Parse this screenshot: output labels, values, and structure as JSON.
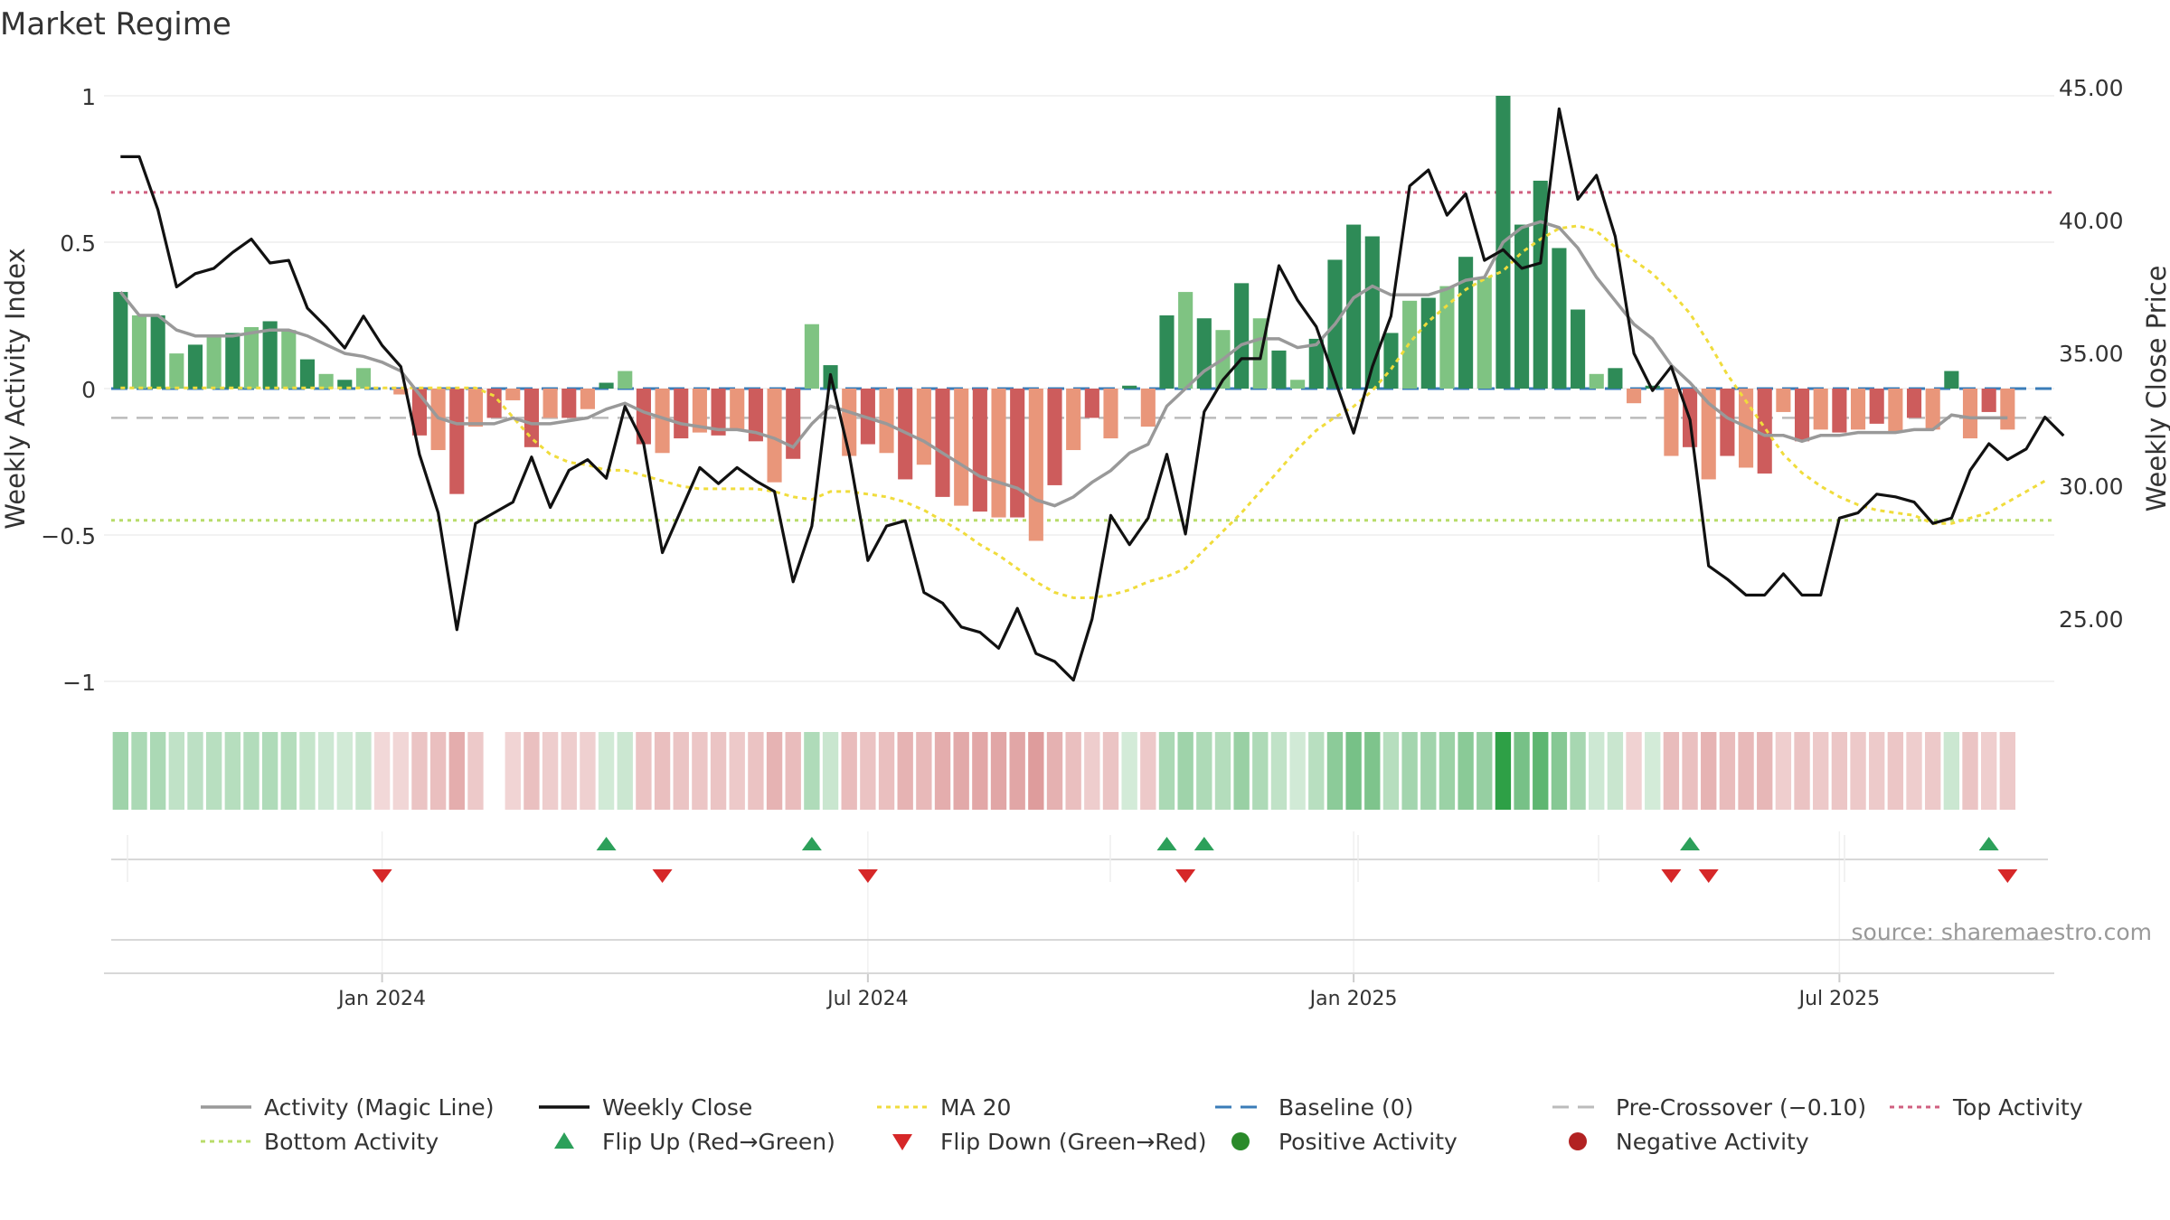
{
  "chart_data": {
    "type": "bar",
    "title": "Market Regime",
    "ylabel_left": "Weekly Activity Index",
    "ylabel_right": "Weekly Close Price",
    "source": "source: sharemaestro.com",
    "ylim_left": [
      -1.05,
      1.0
    ],
    "ylim_right": [
      22.4,
      45.2
    ],
    "yticks_left": [
      {
        "v": 1,
        "label": "1"
      },
      {
        "v": 0.5,
        "label": "0.5"
      },
      {
        "v": 0,
        "label": "0"
      },
      {
        "v": -0.5,
        "label": "−0.5"
      },
      {
        "v": -1,
        "label": "−1"
      }
    ],
    "yticks_right": [
      {
        "v": 45,
        "label": "45.00"
      },
      {
        "v": 40,
        "label": "40.00"
      },
      {
        "v": 35,
        "label": "35.00"
      },
      {
        "v": 30,
        "label": "30.00"
      },
      {
        "v": 25,
        "label": "25.00"
      }
    ],
    "xticks": [
      {
        "i": 14,
        "label": "Jan 2024"
      },
      {
        "i": 40,
        "label": "Jul 2024"
      },
      {
        "i": 66,
        "label": "Jan 2025"
      },
      {
        "i": 92,
        "label": "Jul 2025"
      }
    ],
    "grid": true,
    "legend_position": "bottom",
    "colors": {
      "pos_strong": "#2e8b57",
      "pos_light": "#7fc382",
      "neg_strong": "#cd5c5c",
      "neg_light": "#e9967a",
      "activity": "#999999",
      "close": "#111111",
      "ma": "#f0dc3c",
      "baseline": "#3a7cb8",
      "precross": "#bbbbbb",
      "top": "#d06080",
      "bottom": "#b8dc6a",
      "flip_up": "#2ca05a",
      "flip_down": "#d62728",
      "pos_dot": "#2a8a2a",
      "neg_dot": "#b22222"
    },
    "thresholds": {
      "baseline": 0,
      "pre_crossover": -0.1,
      "top_activity": 0.67,
      "bottom_activity": -0.45
    },
    "x_count": 104,
    "series": [
      {
        "name": "Weekly Activity Index",
        "kind": "bar",
        "values": [
          0.33,
          0.25,
          0.25,
          0.12,
          0.15,
          0.18,
          0.19,
          0.21,
          0.23,
          0.2,
          0.1,
          0.05,
          0.03,
          0.07,
          0,
          -0.02,
          -0.16,
          -0.21,
          -0.36,
          -0.13,
          -0.1,
          -0.04,
          -0.2,
          -0.1,
          -0.1,
          -0.07,
          0.02,
          0.06,
          -0.19,
          -0.22,
          -0.17,
          -0.15,
          -0.16,
          -0.14,
          -0.18,
          -0.32,
          -0.24,
          0.22,
          0.08,
          -0.23,
          -0.19,
          -0.22,
          -0.31,
          -0.26,
          -0.37,
          -0.4,
          -0.42,
          -0.44,
          -0.44,
          -0.52,
          -0.33,
          -0.21,
          -0.1,
          -0.17,
          0.01,
          -0.13,
          0.25,
          0.33,
          0.24,
          0.2,
          0.36,
          0.24,
          0.13,
          0.03,
          0.17,
          0.44,
          0.56,
          0.52,
          0.19,
          0.3,
          0.31,
          0.35,
          0.45,
          0.38,
          1.0,
          0.56,
          0.71,
          0.48,
          0.27,
          0.05,
          0.07,
          -0.05,
          0.01,
          -0.23,
          -0.2,
          -0.31,
          -0.23,
          -0.27,
          -0.29,
          -0.08,
          -0.18,
          -0.14,
          -0.15,
          -0.14,
          -0.12,
          -0.15,
          -0.1,
          -0.14,
          0.06,
          -0.17,
          -0.08,
          -0.14
        ]
      },
      {
        "name": "Activity (Magic Line)",
        "kind": "line",
        "axis": "left",
        "values": [
          0.33,
          0.25,
          0.25,
          0.2,
          0.18,
          0.18,
          0.18,
          0.19,
          0.2,
          0.2,
          0.18,
          0.15,
          0.12,
          0.11,
          0.09,
          0.06,
          -0.02,
          -0.1,
          -0.12,
          -0.12,
          -0.12,
          -0.1,
          -0.12,
          -0.12,
          -0.11,
          -0.1,
          -0.07,
          -0.05,
          -0.08,
          -0.1,
          -0.12,
          -0.13,
          -0.14,
          -0.14,
          -0.15,
          -0.17,
          -0.2,
          -0.12,
          -0.06,
          -0.08,
          -0.1,
          -0.12,
          -0.15,
          -0.18,
          -0.22,
          -0.26,
          -0.3,
          -0.32,
          -0.34,
          -0.38,
          -0.4,
          -0.37,
          -0.32,
          -0.28,
          -0.22,
          -0.19,
          -0.06,
          0,
          0.06,
          0.1,
          0.15,
          0.17,
          0.17,
          0.14,
          0.15,
          0.22,
          0.31,
          0.35,
          0.32,
          0.32,
          0.32,
          0.34,
          0.37,
          0.38,
          0.5,
          0.55,
          0.57,
          0.55,
          0.48,
          0.38,
          0.3,
          0.22,
          0.17,
          0.08,
          0.02,
          -0.05,
          -0.1,
          -0.13,
          -0.16,
          -0.16,
          -0.18,
          -0.16,
          -0.16,
          -0.15,
          -0.15,
          -0.15,
          -0.14,
          -0.14,
          -0.09,
          -0.1,
          -0.1,
          -0.1
        ]
      },
      {
        "name": "Weekly Close",
        "kind": "line",
        "axis": "right",
        "values": [
          42.4,
          42.4,
          40.4,
          37.5,
          38.0,
          38.2,
          38.8,
          39.3,
          38.4,
          38.5,
          36.7,
          36.0,
          35.2,
          36.4,
          35.3,
          34.5,
          31.2,
          29.0,
          24.6,
          28.6,
          29.0,
          29.4,
          31.1,
          29.2,
          30.6,
          31.0,
          30.3,
          33.0,
          31.6,
          27.5,
          29.1,
          30.7,
          30.1,
          30.7,
          30.2,
          29.8,
          26.4,
          28.5,
          34.2,
          31.2,
          27.2,
          28.5,
          28.7,
          26.0,
          25.6,
          24.7,
          24.5,
          23.9,
          25.4,
          23.7,
          23.4,
          22.7,
          25.0,
          28.9,
          27.8,
          28.8,
          31.2,
          28.2,
          32.8,
          34.0,
          34.8,
          34.8,
          38.3,
          37.0,
          36.0,
          34.0,
          32.0,
          34.5,
          36.4,
          41.3,
          41.9,
          40.2,
          41.0,
          38.5,
          38.9,
          38.2,
          38.4,
          44.2,
          40.8,
          41.7,
          39.4,
          35.0,
          33.6,
          34.5,
          32.5,
          27.0,
          26.5,
          25.9,
          25.9,
          26.7,
          25.9,
          25.9,
          28.8,
          29.0,
          29.7,
          29.6,
          29.4,
          28.6,
          28.8,
          30.6,
          31.6,
          31.0,
          31.4,
          32.6,
          31.9
        ]
      },
      {
        "name": "MA 20",
        "kind": "line",
        "axis": "right",
        "values": [
          33.7,
          33.7,
          33.7,
          33.7,
          33.7,
          33.7,
          33.7,
          33.7,
          33.7,
          33.7,
          33.7,
          33.7,
          33.7,
          33.7,
          33.7,
          33.7,
          33.7,
          33.7,
          33.7,
          33.7,
          33.4,
          32.6,
          31.8,
          31.2,
          30.9,
          30.8,
          30.6,
          30.6,
          30.4,
          30.2,
          30.0,
          29.9,
          29.9,
          29.9,
          29.9,
          29.8,
          29.6,
          29.5,
          29.8,
          29.8,
          29.7,
          29.6,
          29.4,
          29.1,
          28.7,
          28.3,
          27.8,
          27.4,
          26.9,
          26.4,
          26.0,
          25.8,
          25.8,
          25.9,
          26.1,
          26.4,
          26.6,
          26.9,
          27.6,
          28.3,
          29.0,
          29.8,
          30.6,
          31.4,
          32.1,
          32.6,
          33.0,
          33.6,
          34.4,
          35.4,
          36.2,
          36.8,
          37.4,
          37.8,
          38.1,
          38.8,
          39.3,
          39.7,
          39.8,
          39.6,
          39.0,
          38.5,
          38.0,
          37.3,
          36.5,
          35.4,
          34.2,
          33.2,
          32.2,
          31.2,
          30.5,
          30.0,
          29.6,
          29.3,
          29.1,
          29.0,
          28.9,
          28.6,
          28.6,
          28.8,
          29.0,
          29.4,
          29.8,
          30.2
        ]
      }
    ],
    "flip_up": [
      26,
      37,
      56,
      58,
      84,
      100
    ],
    "flip_down": [
      14,
      29,
      40,
      57,
      83,
      85,
      101
    ],
    "heat_gap": [
      20
    ],
    "legend": [
      {
        "label": "Activity (Magic Line)",
        "swatch": "line",
        "color": "#999999"
      },
      {
        "label": "Weekly Close",
        "swatch": "line",
        "color": "#111111"
      },
      {
        "label": "MA 20",
        "swatch": "dotted",
        "color": "#f0dc3c"
      },
      {
        "label": "Baseline (0)",
        "swatch": "dashed",
        "color": "#3a7cb8"
      },
      {
        "label": "Pre-Crossover (−0.10)",
        "swatch": "dashed",
        "color": "#bbbbbb"
      },
      {
        "label": "Top Activity",
        "swatch": "dotted",
        "color": "#d06080"
      },
      {
        "label": "Bottom Activity",
        "swatch": "dotted",
        "color": "#b8dc6a"
      },
      {
        "label": "Flip Up (Red→Green)",
        "swatch": "tri-up",
        "color": "#2ca05a"
      },
      {
        "label": "Flip Down (Green→Red)",
        "swatch": "tri-down",
        "color": "#d62728"
      },
      {
        "label": "Positive Activity",
        "swatch": "dot",
        "color": "#2a8a2a"
      },
      {
        "label": "Negative Activity",
        "swatch": "dot",
        "color": "#b22222"
      }
    ]
  }
}
